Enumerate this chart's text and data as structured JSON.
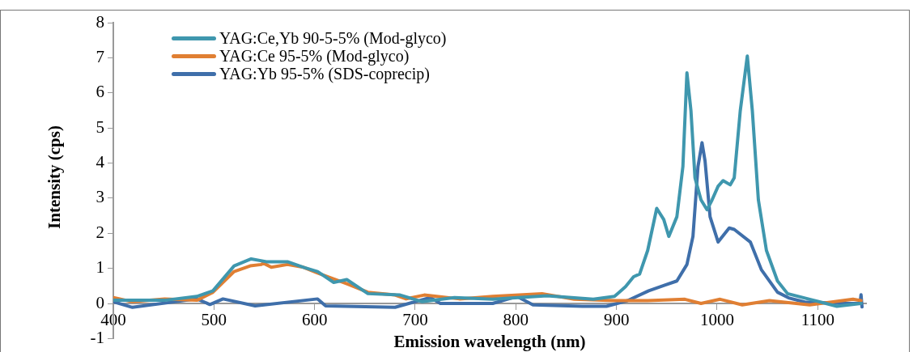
{
  "chart_data": {
    "type": "line",
    "xlabel": "Emission wavelength (nm)",
    "ylabel": "Intensity (cps)",
    "xlim": [
      400,
      1148
    ],
    "xticks": [
      400,
      500,
      600,
      700,
      800,
      900,
      1000,
      1100
    ],
    "ylim": [
      -1,
      8
    ],
    "yticks": [
      -1,
      0,
      1,
      2,
      3,
      4,
      5,
      6,
      7,
      8
    ],
    "grid": false,
    "legend": "top left",
    "marker": "none",
    "line_style": "solid",
    "series": [
      {
        "name": "YAG:Ce,Yb 90-5-5% (Mod-glyco)",
        "color": "#3f97ae",
        "x": [
          400,
          451,
          483,
          499,
          520,
          537,
          552,
          573,
          589,
          603,
          619,
          632,
          653,
          685,
          707,
          739,
          777,
          831,
          877,
          898,
          909,
          917,
          923,
          931,
          940,
          947,
          952,
          960,
          966,
          970,
          974,
          978,
          984,
          990,
          995,
          1001,
          1006,
          1013,
          1017,
          1023,
          1030,
          1035,
          1041,
          1049,
          1060,
          1070,
          1092,
          1119,
          1143
        ],
        "values": [
          0.09,
          0.09,
          0.2,
          0.36,
          1.07,
          1.27,
          1.19,
          1.19,
          1.03,
          0.91,
          0.6,
          0.68,
          0.28,
          0.24,
          0.05,
          0.17,
          0.12,
          0.22,
          0.12,
          0.2,
          0.48,
          0.76,
          0.84,
          1.51,
          2.71,
          2.39,
          1.91,
          2.47,
          3.9,
          6.57,
          5.49,
          3.58,
          2.95,
          2.67,
          2.95,
          3.34,
          3.5,
          3.38,
          3.58,
          5.49,
          7.05,
          5.49,
          2.95,
          1.51,
          0.64,
          0.28,
          0.12,
          -0.08,
          0
        ]
      },
      {
        "name": "YAG:Ce 95-5% (Mod-glyco)",
        "color": "#e07f33",
        "x": [
          400,
          419,
          451,
          483,
          499,
          520,
          536,
          547,
          549,
          557,
          573,
          589,
          603,
          621,
          632,
          653,
          680,
          691,
          709,
          744,
          777,
          826,
          858,
          898,
          931,
          968,
          984,
          1003,
          1025,
          1052,
          1092,
          1135,
          1143
        ],
        "values": [
          0.17,
          0.05,
          0.13,
          0.09,
          0.32,
          0.91,
          1.07,
          1.11,
          1.15,
          1.03,
          1.11,
          1.03,
          0.87,
          0.68,
          0.56,
          0.32,
          0.24,
          0.13,
          0.24,
          0.13,
          0.2,
          0.28,
          0.12,
          0.08,
          0.08,
          0.12,
          0,
          0.12,
          -0.04,
          0.08,
          -0.04,
          0.12,
          0.08
        ]
      },
      {
        "name": "YAG:Yb 95-5% (SDS-coprecip)",
        "color": "#3f6faa",
        "x": [
          400,
          419,
          483,
          496,
          509,
          541,
          603,
          611,
          680,
          715,
          725,
          777,
          801,
          817,
          866,
          890,
          911,
          932,
          948,
          960,
          970,
          976,
          981,
          985,
          988,
          993,
          1001,
          1012,
          1017,
          1033,
          1044,
          1060,
          1071,
          1087,
          1125,
          1142,
          1143,
          1144
        ],
        "values": [
          0.05,
          -0.11,
          0.13,
          -0.03,
          0.13,
          -0.07,
          0.13,
          -0.07,
          -0.11,
          0.17,
          0,
          0,
          0.2,
          -0.04,
          -0.08,
          -0.08,
          0.08,
          0.36,
          0.52,
          0.64,
          1.11,
          1.91,
          3.9,
          4.58,
          4.06,
          2.47,
          1.75,
          2.15,
          2.11,
          1.75,
          0.96,
          0.32,
          0.16,
          0.04,
          0,
          0,
          0.25,
          -0.1
        ]
      }
    ]
  }
}
